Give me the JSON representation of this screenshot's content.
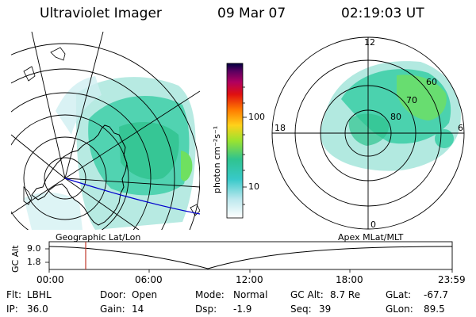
{
  "header": {
    "title": "Ultraviolet Imager",
    "date": "09 Mar 07",
    "time": "02:19:03 UT"
  },
  "colorbar": {
    "unit_label": "photon cm⁻²s⁻¹",
    "scale": "log",
    "ticks": [
      "100",
      "10"
    ]
  },
  "geo_map": {
    "label": "Geographic Lat/Lon"
  },
  "apex_map": {
    "label": "Apex MLat/MLT",
    "mlt_labels": {
      "top": "12",
      "left": "18",
      "right": "6",
      "bottom": "0"
    },
    "mlat_labels": [
      "60",
      "70",
      "80"
    ]
  },
  "orbit_plot": {
    "ylabel": "GC Alt",
    "yticks": [
      "9.0",
      "1.8"
    ],
    "xticks": [
      "00:00",
      "06:00",
      "12:00",
      "18:00",
      "23:59"
    ],
    "marker_time": "02:19"
  },
  "status": {
    "row1": [
      {
        "label": "Flt:",
        "value": "LBHL"
      },
      {
        "label": "Door:",
        "value": "Open"
      },
      {
        "label": "Mode:",
        "value": "Normal"
      },
      {
        "label": "GC Alt:",
        "value": "8.7 Re"
      },
      {
        "label": "GLat:",
        "value": "-67.7"
      }
    ],
    "row2": [
      {
        "label": "IP:",
        "value": "36.0"
      },
      {
        "label": "Gain:",
        "value": "14"
      },
      {
        "label": "Dsp:",
        "value": "-1.9"
      },
      {
        "label": "Seq:",
        "value": "39"
      },
      {
        "label": "GLon:",
        "value": "89.5"
      }
    ]
  },
  "colors": {
    "blob_main": "#3fcfa8",
    "blob_light": "#9fe3d8",
    "blob_green": "#6fe060",
    "marker": "#c0392b",
    "orbit_track": "#0000cc"
  }
}
